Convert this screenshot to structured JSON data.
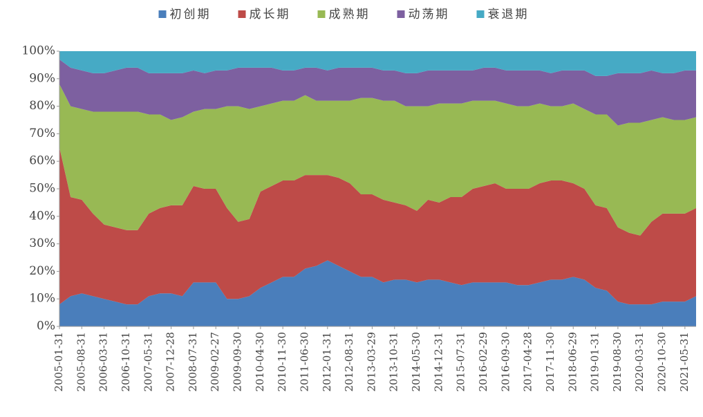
{
  "chart_data": {
    "type": "stacked_area",
    "categories": [
      "2005-01-31",
      null,
      "2005-08-31",
      null,
      "2006-03-31",
      null,
      "2006-10-31",
      null,
      "2007-05-31",
      null,
      "2007-12-28",
      null,
      "2008-07-31",
      null,
      "2009-02-27",
      null,
      "2009-09-30",
      null,
      "2010-04-30",
      null,
      "2010-11-30",
      null,
      "2011-06-30",
      null,
      "2012-01-31",
      null,
      "2012-08-31",
      null,
      "2013-03-29",
      null,
      "2013-10-31",
      null,
      "2014-05-30",
      null,
      "2014-12-31",
      null,
      "2015-07-31",
      null,
      "2016-02-29",
      null,
      "2016-09-30",
      null,
      "2017-04-28",
      null,
      "2017-11-30",
      null,
      "2018-06-29",
      null,
      "2019-01-31",
      null,
      "2019-08-30",
      null,
      "2020-03-31",
      null,
      "2020-10-30",
      null,
      "2021-05-31",
      null
    ],
    "series": [
      {
        "name": "初创期",
        "color": "#4a7ebb",
        "values": [
          8,
          11,
          12,
          11,
          10,
          9,
          8,
          8,
          11,
          12,
          12,
          11,
          16,
          16,
          16,
          10,
          10,
          11,
          14,
          16,
          18,
          18,
          21,
          22,
          24,
          22,
          20,
          18,
          18,
          16,
          17,
          17,
          16,
          17,
          17,
          16,
          15,
          16,
          16,
          16,
          16,
          15,
          15,
          16,
          17,
          17,
          18,
          17,
          14,
          13,
          9,
          8,
          8,
          8,
          9,
          9,
          9,
          11
        ]
      },
      {
        "name": "成长期",
        "color": "#be4b48",
        "values": [
          57,
          36,
          34,
          30,
          27,
          27,
          27,
          27,
          30,
          31,
          32,
          33,
          35,
          34,
          34,
          33,
          28,
          28,
          35,
          35,
          35,
          35,
          34,
          33,
          31,
          32,
          32,
          30,
          30,
          30,
          28,
          27,
          26,
          29,
          28,
          31,
          32,
          34,
          35,
          36,
          34,
          35,
          35,
          36,
          36,
          36,
          34,
          33,
          30,
          30,
          27,
          26,
          25,
          30,
          32,
          32,
          32,
          32
        ]
      },
      {
        "name": "成熟期",
        "color": "#98b954",
        "values": [
          23,
          33,
          33,
          37,
          41,
          42,
          43,
          43,
          36,
          34,
          31,
          32,
          27,
          29,
          29,
          37,
          42,
          40,
          31,
          30,
          29,
          29,
          29,
          27,
          27,
          28,
          30,
          35,
          35,
          36,
          37,
          36,
          38,
          34,
          36,
          34,
          34,
          32,
          31,
          30,
          31,
          30,
          30,
          29,
          27,
          27,
          29,
          29,
          33,
          34,
          37,
          40,
          41,
          37,
          35,
          34,
          34,
          33
        ]
      },
      {
        "name": "动荡期",
        "color": "#7d60a0",
        "values": [
          9,
          14,
          14,
          14,
          14,
          15,
          16,
          16,
          15,
          15,
          17,
          16,
          15,
          13,
          14,
          13,
          14,
          15,
          14,
          13,
          11,
          11,
          10,
          12,
          11,
          12,
          12,
          11,
          11,
          11,
          11,
          12,
          12,
          13,
          12,
          12,
          12,
          11,
          12,
          12,
          12,
          13,
          13,
          12,
          12,
          13,
          12,
          14,
          14,
          14,
          19,
          18,
          18,
          18,
          16,
          17,
          18,
          17
        ]
      },
      {
        "name": "衰退期",
        "color": "#46aac5",
        "values": [
          3,
          6,
          7,
          8,
          8,
          7,
          6,
          6,
          8,
          8,
          8,
          8,
          7,
          8,
          7,
          7,
          6,
          6,
          6,
          6,
          7,
          7,
          6,
          6,
          7,
          6,
          6,
          6,
          6,
          7,
          7,
          8,
          8,
          7,
          7,
          7,
          7,
          7,
          6,
          6,
          7,
          7,
          7,
          7,
          8,
          7,
          7,
          7,
          9,
          9,
          8,
          8,
          8,
          7,
          8,
          8,
          7,
          7
        ]
      }
    ],
    "ylim": [
      0,
      100
    ],
    "yticks": [
      {
        "value": 0,
        "label": "0%"
      },
      {
        "value": 10,
        "label": "10%"
      },
      {
        "value": 20,
        "label": "20%"
      },
      {
        "value": 30,
        "label": "30%"
      },
      {
        "value": 40,
        "label": "40%"
      },
      {
        "value": 50,
        "label": "50%"
      },
      {
        "value": 60,
        "label": "60%"
      },
      {
        "value": 70,
        "label": "70%"
      },
      {
        "value": 80,
        "label": "80%"
      },
      {
        "value": 90,
        "label": "90%"
      },
      {
        "value": 100,
        "label": "100%"
      }
    ],
    "legend": "top"
  }
}
